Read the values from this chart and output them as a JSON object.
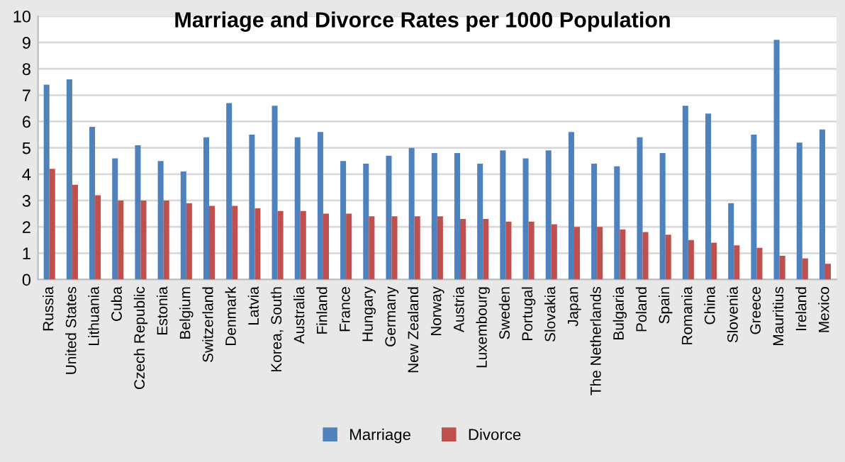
{
  "chart_data": {
    "type": "bar",
    "title": "Marriage and Divorce Rates per 1000 Population",
    "categories": [
      "Russia",
      "United States",
      "Lithuania",
      "Cuba",
      "Czech Republic",
      "Estonia",
      "Belgium",
      "Switzerland",
      "Denmark",
      "Latvia",
      "Korea, South",
      "Australia",
      "Finland",
      "France",
      "Hungary",
      "Germany",
      "New Zealand",
      "Norway",
      "Austria",
      "Luxembourg",
      "Sweden",
      "Portugal",
      "Slovakia",
      "Japan",
      "The Netherlands",
      "Bulgaria",
      "Poland",
      "Spain",
      "Romania",
      "China",
      "Slovenia",
      "Greece",
      "Mauritius",
      "Ireland",
      "Mexico"
    ],
    "series": [
      {
        "name": "Marriage",
        "color": "#4f81bd",
        "values": [
          7.4,
          7.6,
          5.8,
          4.6,
          5.1,
          4.5,
          4.1,
          5.4,
          6.7,
          5.5,
          6.6,
          5.4,
          5.6,
          4.5,
          4.4,
          4.7,
          5.0,
          4.8,
          4.8,
          4.4,
          4.9,
          4.6,
          4.9,
          5.6,
          4.4,
          4.3,
          5.4,
          4.8,
          6.6,
          6.3,
          2.9,
          5.5,
          9.1,
          5.2,
          5.7
        ]
      },
      {
        "name": "Divorce",
        "color": "#c0504d",
        "values": [
          4.2,
          3.6,
          3.2,
          3.0,
          3.0,
          3.0,
          2.9,
          2.8,
          2.8,
          2.7,
          2.6,
          2.6,
          2.5,
          2.5,
          2.4,
          2.4,
          2.4,
          2.4,
          2.3,
          2.3,
          2.2,
          2.2,
          2.1,
          2.0,
          2.0,
          1.9,
          1.8,
          1.7,
          1.5,
          1.4,
          1.3,
          1.2,
          0.9,
          0.8,
          0.6
        ]
      }
    ],
    "ylim": [
      0,
      10
    ],
    "yticks": [
      0,
      1,
      2,
      3,
      4,
      5,
      6,
      7,
      8,
      9,
      10
    ],
    "grid": "y",
    "legend": "bottom"
  }
}
